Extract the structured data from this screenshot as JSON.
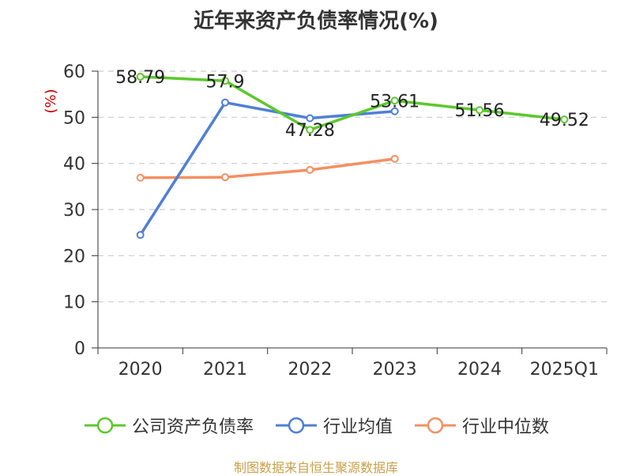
{
  "title": "近年来资产负债率情况(%)",
  "source_text": "制图数据来自恒生聚源数据库",
  "colors": {
    "source": "#c8a04a",
    "ylabel": "#cc0000",
    "axis": "#333333",
    "grid": "#cccccc"
  },
  "chart_data": {
    "type": "line",
    "title": "近年来资产负债率情况(%)",
    "xlabel": "",
    "ylabel": "(%)",
    "categories": [
      "2020",
      "2021",
      "2022",
      "2023",
      "2024",
      "2025Q1"
    ],
    "ylim": [
      0,
      60
    ],
    "yticks": [
      0,
      10,
      20,
      30,
      40,
      50,
      60
    ],
    "grid": "horizontal dashed",
    "legend_position": "bottom",
    "series": [
      {
        "name": "公司资产负债率",
        "color": "#5cc82c",
        "values": [
          58.79,
          57.9,
          47.28,
          53.61,
          51.56,
          49.52
        ],
        "labels": [
          "58.79",
          "57.9",
          "47.28",
          "53.61",
          "51.56",
          "49.52"
        ]
      },
      {
        "name": "行业均值",
        "color": "#4f7fd8",
        "values": [
          24.5,
          53.2,
          49.8,
          51.3,
          null,
          null
        ]
      },
      {
        "name": "行业中位数",
        "color": "#f39060",
        "values": [
          36.9,
          37.0,
          38.6,
          41.0,
          null,
          null
        ]
      }
    ]
  }
}
